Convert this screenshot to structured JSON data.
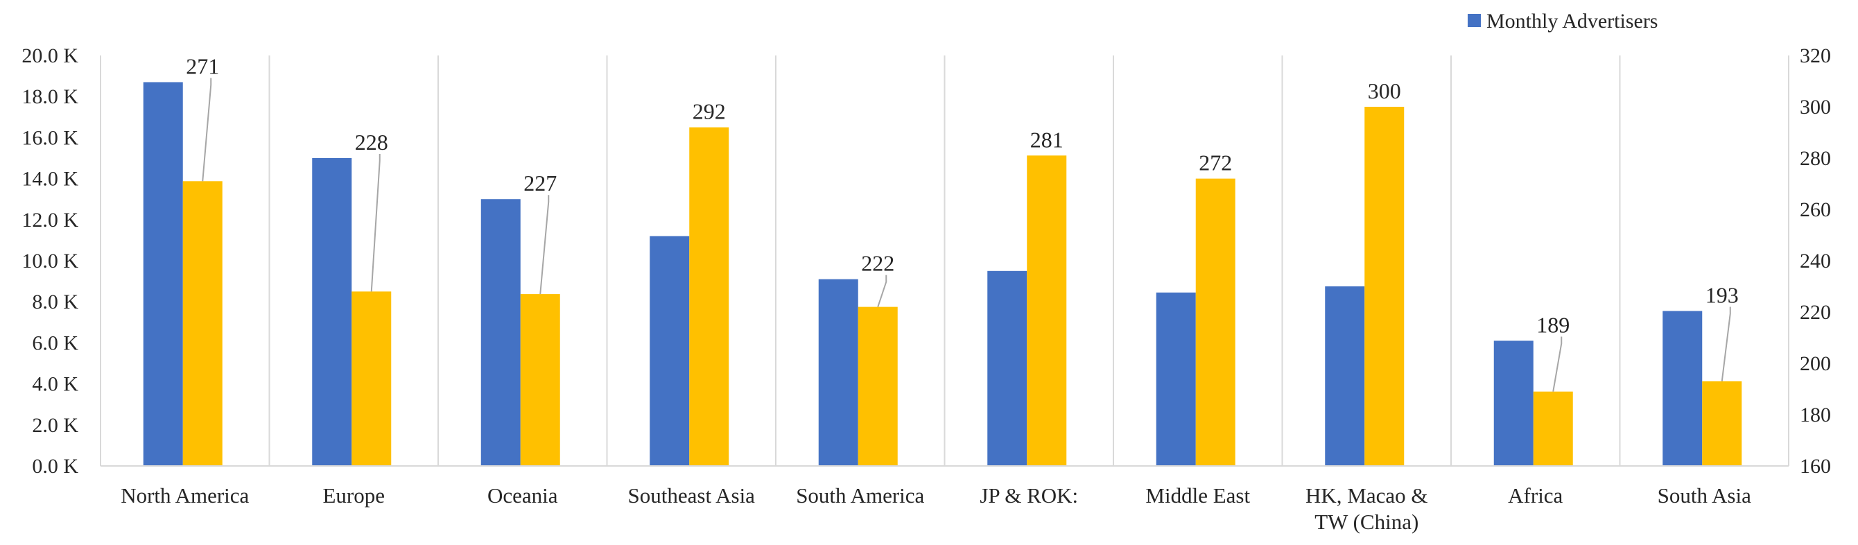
{
  "chart_data": {
    "type": "bar",
    "title": "",
    "categories": [
      "North America",
      "Europe",
      "Oceania",
      "Southeast Asia",
      "South America",
      "JP & ROK:",
      "Middle East",
      "HK, Macao & TW (China)",
      "Africa",
      "South Asia"
    ],
    "category_lines": [
      [
        "North America"
      ],
      [
        "Europe"
      ],
      [
        "Oceania"
      ],
      [
        "Southeast Asia"
      ],
      [
        "South America"
      ],
      [
        "JP & ROK:"
      ],
      [
        "Middle East"
      ],
      [
        "HK, Macao &",
        "TW (China)"
      ],
      [
        "Africa"
      ],
      [
        "South Asia"
      ]
    ],
    "series": [
      {
        "name": "Monthly Advertisers",
        "axis": "left",
        "color": "#4472c4",
        "values": [
          18700,
          15000,
          13000,
          11200,
          9100,
          9500,
          8450,
          8750,
          6100,
          7550
        ]
      },
      {
        "name": "",
        "axis": "right",
        "color": "#ffc000",
        "values": [
          271,
          228,
          227,
          292,
          222,
          281,
          272,
          300,
          189,
          193
        ],
        "labels": [
          "271",
          "228",
          "227",
          "292",
          "222",
          "281",
          "272",
          "300",
          "189",
          "193"
        ]
      }
    ],
    "y_left": {
      "min": 0,
      "max": 20000,
      "step": 2000,
      "ticks": [
        "0.0 K",
        "2.0 K",
        "4.0 K",
        "6.0 K",
        "8.0 K",
        "10.0 K",
        "12.0 K",
        "14.0 K",
        "16.0 K",
        "18.0 K",
        "20.0 K"
      ]
    },
    "y_right": {
      "min": 160,
      "max": 320,
      "step": 20,
      "ticks": [
        "160",
        "180",
        "200",
        "220",
        "240",
        "260",
        "280",
        "300",
        "320"
      ]
    },
    "legend": {
      "entries": [
        "Monthly Advertisers"
      ],
      "position": "top-right"
    },
    "grid": false
  }
}
